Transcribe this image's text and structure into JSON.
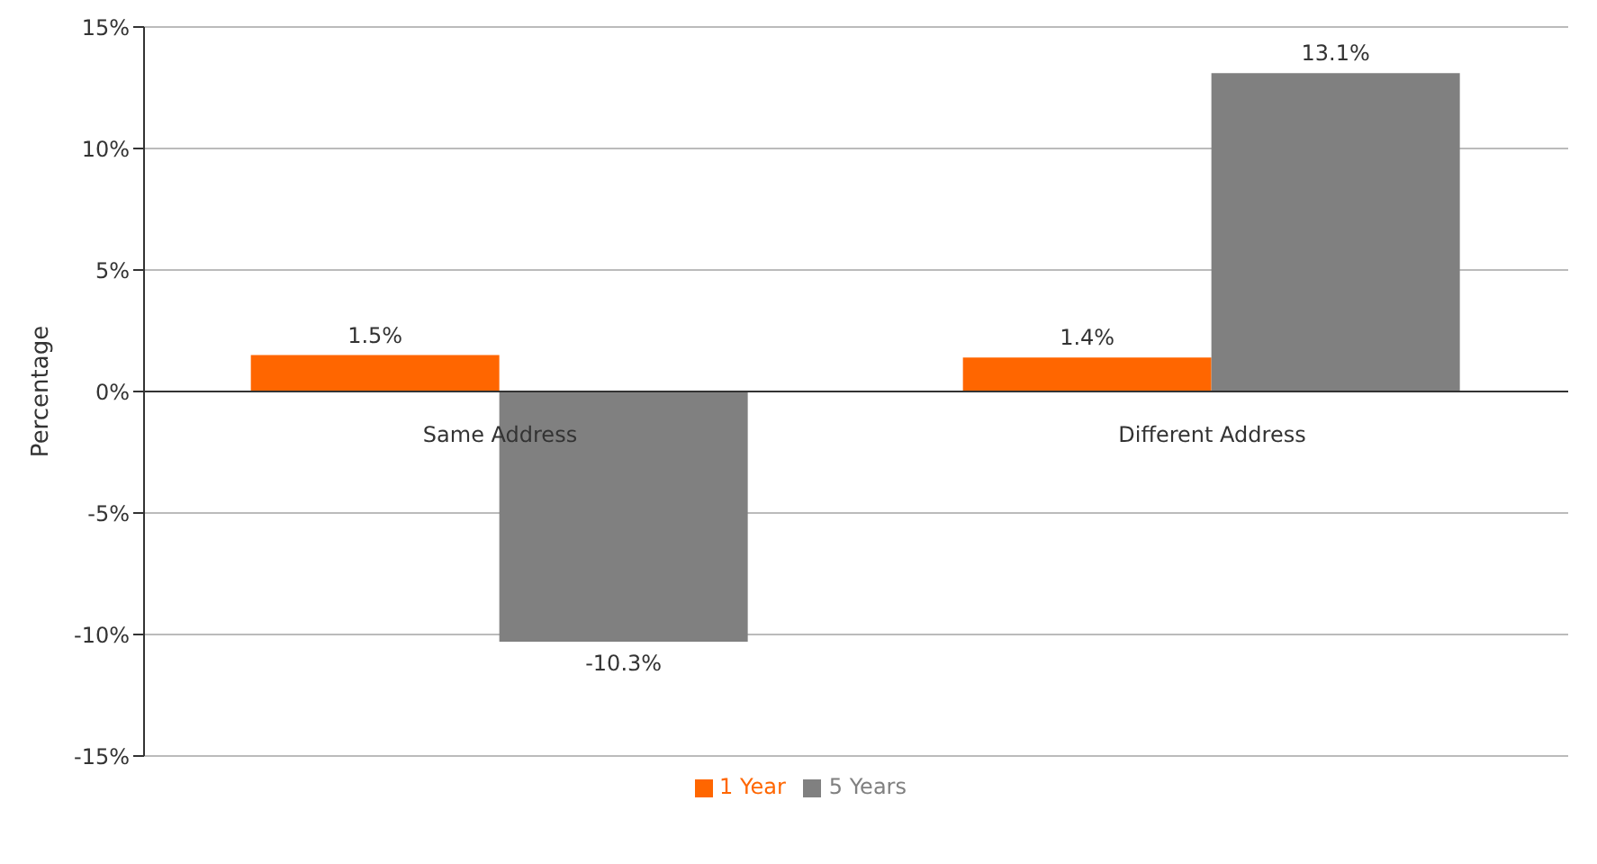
{
  "chart_data": {
    "type": "bar",
    "categories": [
      "Same Address",
      "Different Address"
    ],
    "series": [
      {
        "name": "1 Year",
        "color": "#ff6600",
        "values": [
          1.5,
          1.4
        ],
        "value_labels": [
          "1.5%",
          "1.4%"
        ]
      },
      {
        "name": "5 Years",
        "color": "#808080",
        "values": [
          -10.3,
          13.1
        ],
        "value_labels": [
          "-10.3%",
          "13.1%"
        ]
      }
    ],
    "ylabel": "Percentage",
    "ylim": [
      -15,
      15
    ],
    "yticks": [
      {
        "value": -15,
        "label": "-15%"
      },
      {
        "value": -10,
        "label": "-10%"
      },
      {
        "value": -5,
        "label": "-5%"
      },
      {
        "value": 0,
        "label": "0%"
      },
      {
        "value": 5,
        "label": "5%"
      },
      {
        "value": 10,
        "label": "10%"
      },
      {
        "value": 15,
        "label": "15%"
      }
    ],
    "grid": "y",
    "legend": "bottom"
  }
}
